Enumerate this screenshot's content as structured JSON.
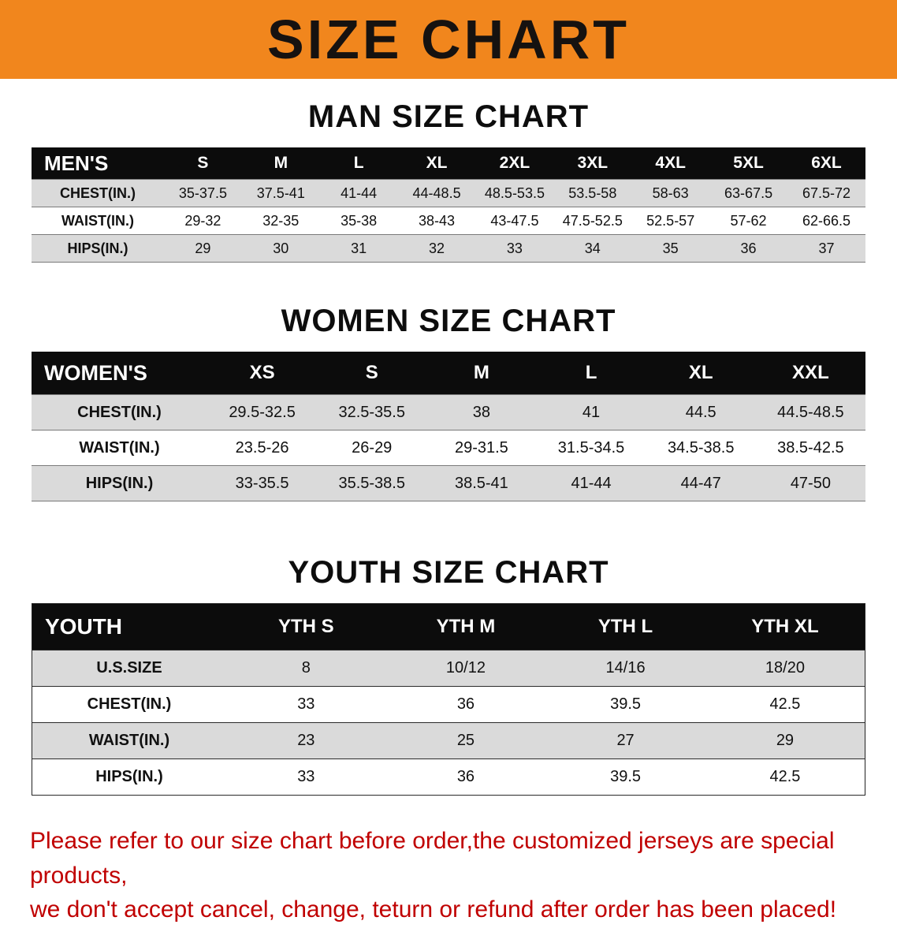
{
  "banner": {
    "title": "SIZE CHART",
    "background_color": "#f1861d",
    "text_color": "#161210"
  },
  "colors": {
    "table_header_bg": "#0c0c0c",
    "table_header_text": "#ffffff",
    "row_shaded": "#dadada",
    "notice_text": "#c00000"
  },
  "sections": [
    {
      "id": "men",
      "heading": "MAN SIZE CHART",
      "table": {
        "corner": "MEN'S",
        "columns": [
          "S",
          "M",
          "L",
          "XL",
          "2XL",
          "3XL",
          "4XL",
          "5XL",
          "6XL"
        ],
        "rows": [
          {
            "label": "CHEST(IN.)",
            "values": [
              "35-37.5",
              "37.5-41",
              "41-44",
              "44-48.5",
              "48.5-53.5",
              "53.5-58",
              "58-63",
              "63-67.5",
              "67.5-72"
            ]
          },
          {
            "label": "WAIST(IN.)",
            "values": [
              "29-32",
              "32-35",
              "35-38",
              "38-43",
              "43-47.5",
              "47.5-52.5",
              "52.5-57",
              "57-62",
              "62-66.5"
            ]
          },
          {
            "label": "HIPS(IN.)",
            "values": [
              "29",
              "30",
              "31",
              "32",
              "33",
              "34",
              "35",
              "36",
              "37"
            ]
          }
        ]
      }
    },
    {
      "id": "women",
      "heading": "WOMEN SIZE CHART",
      "table": {
        "corner": "WOMEN'S",
        "columns": [
          "XS",
          "S",
          "M",
          "L",
          "XL",
          "XXL"
        ],
        "rows": [
          {
            "label": "CHEST(IN.)",
            "values": [
              "29.5-32.5",
              "32.5-35.5",
              "38",
              "41",
              "44.5",
              "44.5-48.5"
            ]
          },
          {
            "label": "WAIST(IN.)",
            "values": [
              "23.5-26",
              "26-29",
              "29-31.5",
              "31.5-34.5",
              "34.5-38.5",
              "38.5-42.5"
            ]
          },
          {
            "label": "HIPS(IN.)",
            "values": [
              "33-35.5",
              "35.5-38.5",
              "38.5-41",
              "41-44",
              "44-47",
              "47-50"
            ]
          }
        ]
      }
    },
    {
      "id": "youth",
      "heading": "YOUTH SIZE CHART",
      "table": {
        "corner": "YOUTH",
        "columns": [
          "YTH S",
          "YTH M",
          "YTH L",
          "YTH XL"
        ],
        "rows": [
          {
            "label": "U.S.SIZE",
            "values": [
              "8",
              "10/12",
              "14/16",
              "18/20"
            ]
          },
          {
            "label": "CHEST(IN.)",
            "values": [
              "33",
              "36",
              "39.5",
              "42.5"
            ]
          },
          {
            "label": "WAIST(IN.)",
            "values": [
              "23",
              "25",
              "27",
              "29"
            ]
          },
          {
            "label": "HIPS(IN.)",
            "values": [
              "33",
              "36",
              "39.5",
              "42.5"
            ]
          }
        ]
      }
    }
  ],
  "footer": {
    "line1": "Please refer to our size chart before order,the customized jerseys are special products,",
    "line2": "we don't accept cancel, change, teturn or refund after order has been placed!"
  }
}
